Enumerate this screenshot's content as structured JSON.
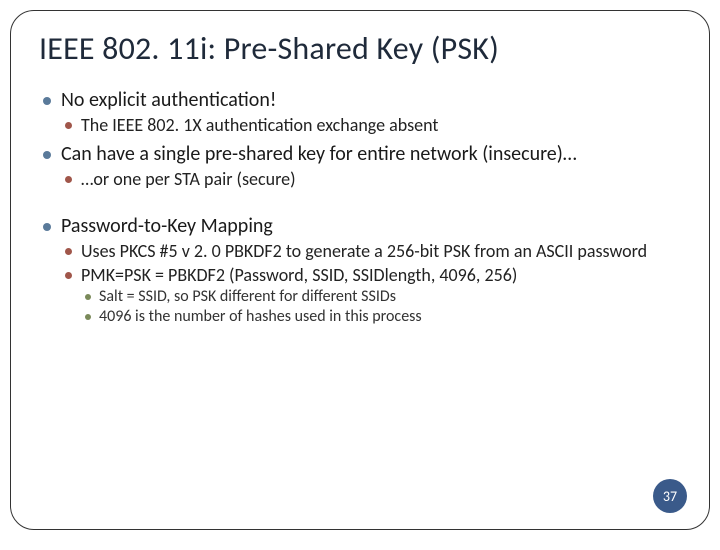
{
  "title": "IEEE 802. 11i: Pre-Shared Key (PSK)",
  "bullets": {
    "b1": "No explicit authentication!",
    "b1a": "The IEEE 802. 1X authentication exchange absent",
    "b2": "Can have a single pre-shared key for entire network (insecure)…",
    "b2a": "…or one per STA pair (secure)",
    "b3": "Password-to-Key Mapping",
    "b3a": "Uses PKCS #5 v 2. 0 PBKDF2 to generate a 256-bit PSK from an ASCII password",
    "b3b": "PMK=PSK = PBKDF2 (Password, SSID, SSIDlength, 4096, 256)",
    "b3b1": "Salt = SSID, so PSK different for different SSIDs",
    "b3b2": "4096 is the number of hashes used in this process"
  },
  "page": "37",
  "colors": {
    "border": "#333333",
    "title": "#1f2a3a",
    "bullet1": "#5a7a9a",
    "bullet2": "#a0564a",
    "bullet3": "#7a8a5a",
    "badge": "#3a5a8a"
  }
}
